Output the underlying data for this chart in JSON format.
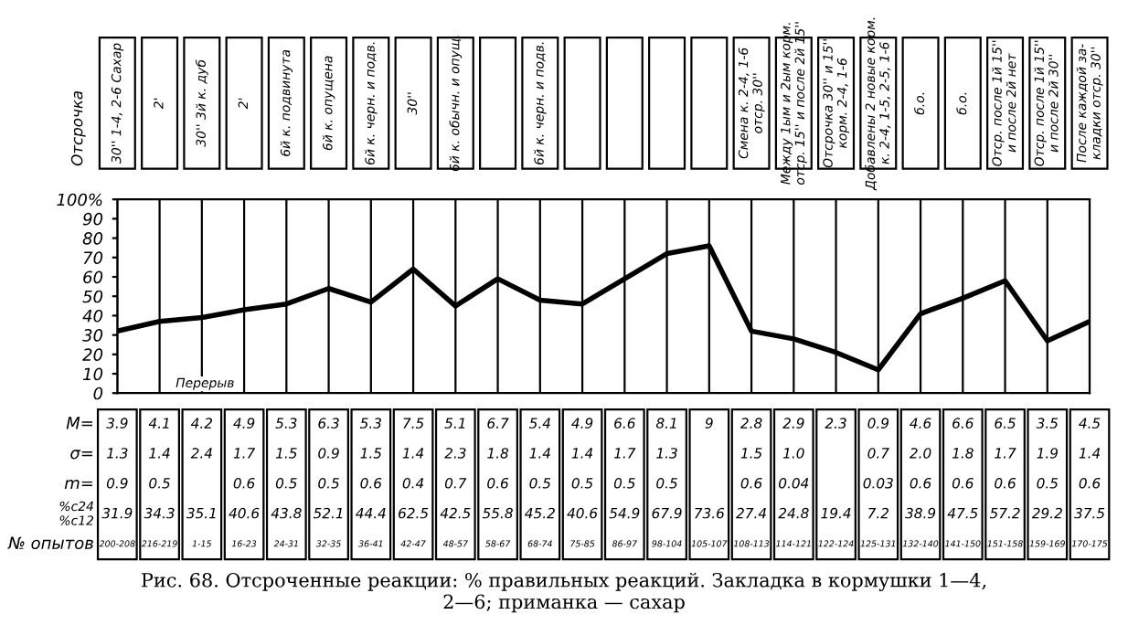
{
  "chart_data": [
    {
      "type": "line",
      "title": "Рис. 68. Отсроченные реакции: % правильных реакций. Закладка в кормушки 1—4,\n2—6; приманка — сахар",
      "categories": [
        "30'' 1-4, 2-6 Сахар",
        "2'",
        "30'' 3й к. дуб",
        "2'",
        "6й к. подвинута",
        "6й к. опущена",
        "6й к. черн. и подв.",
        "30''",
        "6й к. обычн. и опущ.",
        null,
        "6й к. черн. и подв.",
        null,
        null,
        null,
        null,
        "Смена к. 2-4, 1-6\nотср. 30''",
        "Между 1ым и 2ым корм.\nотср. 15'' и после 2й 15''",
        "Отсрочка 30'' и 15''\nкорм. 2-4, 1-6",
        "Добавлены 2 новые корм.\nк. 2-4, 1-5, 2-5, 1-6",
        "б.о.",
        "б.о.",
        "Отср. после 1й 15''\nи после 2й нет",
        "Отср. после 1й 15''\nи после 2й 30''",
        "После каждой за-\nкладки отср. 30''"
      ],
      "series": [
        {
          "color": "#000000",
          "values": [
            32,
            37,
            39,
            43,
            46,
            54,
            47,
            64,
            45,
            59,
            48,
            46,
            59,
            72,
            76,
            32,
            28,
            21,
            12,
            41,
            49,
            58,
            27,
            37
          ]
        }
      ],
      "ylim": [
        0,
        100
      ],
      "yticks": [
        0,
        10,
        20,
        30,
        40,
        50,
        60,
        70,
        80,
        90,
        {
          "value": 100,
          "label": "100%"
        }
      ],
      "grid": "x",
      "tick_labels": "y",
      "marker": "none",
      "line_style": "solid",
      "annotations": [
        "Перерыв",
        "Отсрочка"
      ]
    },
    {
      "type": "other",
      "y_categories": [
        "M=",
        "σ=",
        "m=",
        "%с24\n%с12",
        "№ опытов"
      ],
      "cell_labels": [
        [
          "3.9",
          "4.1",
          "4.2",
          "4.9",
          "5.3",
          "6.3",
          "5.3",
          "7.5",
          "5.1",
          "6.7",
          "5.4",
          "4.9",
          "6.6",
          "8.1",
          "9",
          "2.8",
          "2.9",
          "2.3",
          "0.9",
          "4.6",
          "6.6",
          "6.5",
          "3.5",
          "4.5"
        ],
        [
          "1.3",
          "1.4",
          "2.4",
          "1.7",
          "1.5",
          "0.9",
          "1.5",
          "1.4",
          "2.3",
          "1.8",
          "1.4",
          "1.4",
          "1.7",
          "1.3",
          null,
          "1.5",
          "1.0",
          null,
          "0.7",
          "2.0",
          "1.8",
          "1.7",
          "1.9",
          "1.4"
        ],
        [
          "0.9",
          "0.5",
          null,
          "0.6",
          "0.5",
          "0.5",
          "0.6",
          "0.4",
          "0.7",
          "0.6",
          "0.5",
          "0.5",
          "0.5",
          "0.5",
          null,
          "0.6",
          "0.04",
          null,
          "0.03",
          "0.6",
          "0.6",
          "0.6",
          "0.5",
          "0.6"
        ],
        [
          "31.9",
          "34.3",
          "35.1",
          "40.6",
          "43.8",
          "52.1",
          "44.4",
          "62.5",
          "42.5",
          "55.8",
          "45.2",
          "40.6",
          "54.9",
          "67.9",
          "73.6",
          "27.4",
          "24.8",
          "19.4",
          "7.2",
          "38.9",
          "47.5",
          "57.2",
          "29.2",
          "37.5"
        ],
        [
          "200-208",
          "216-219",
          "1-15",
          "16-23",
          "24-31",
          "32-35",
          "36-41",
          "42-47",
          "48-57",
          "58-67",
          "68-74",
          "75-85",
          "86-97",
          "98-104",
          "105-107",
          "108-113",
          "114-121",
          "122-124",
          "125-131",
          "132-140",
          "141-150",
          "151-158",
          "159-169",
          "170-175"
        ]
      ]
    }
  ]
}
